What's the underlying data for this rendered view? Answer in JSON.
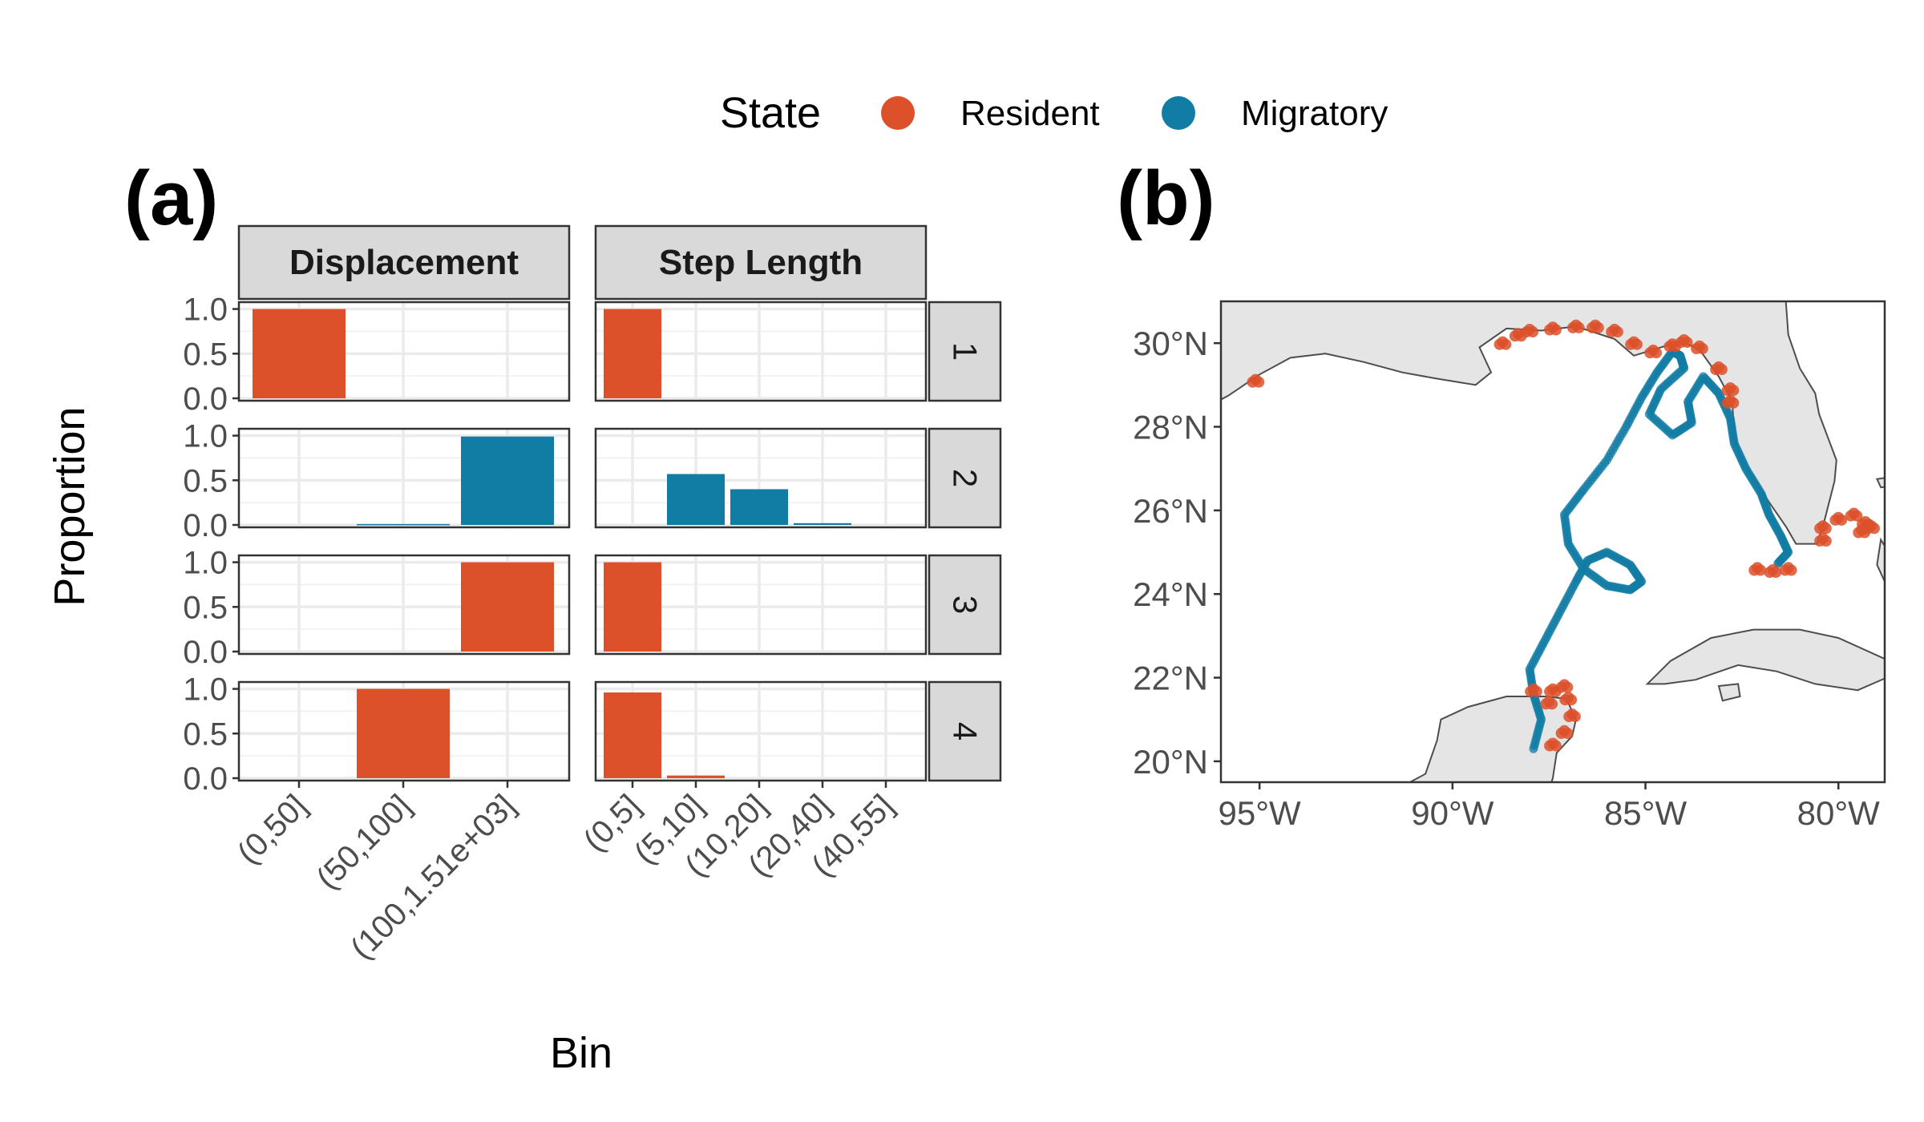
{
  "legend": {
    "title": "State",
    "entries": [
      {
        "label": "Resident",
        "color": "#DC502A"
      },
      {
        "label": "Migratory",
        "color": "#117CA4"
      }
    ]
  },
  "chart_data": [
    {
      "type": "bar",
      "panel_label": "(a)",
      "facet_columns": [
        "Displacement",
        "Step Length"
      ],
      "facet_rows": [
        "1",
        "2",
        "3",
        "4"
      ],
      "row_states": [
        "Resident",
        "Migratory",
        "Resident",
        "Resident"
      ],
      "xlabel": "Bin",
      "ylabel": "Proportion",
      "ylim": [
        0,
        1.05
      ],
      "yticks": [
        "0.0",
        "0.5",
        "1.0"
      ],
      "grid": true,
      "displacement_categories": [
        "(0,50]",
        "(50,100]",
        "(100,1.51e+03]"
      ],
      "step_length_categories": [
        "(0,5]",
        "(5,10]",
        "(10,20]",
        "(20,40]",
        "(40,55]"
      ],
      "displacement_values": [
        [
          1.0,
          0.0,
          0.0
        ],
        [
          0.0,
          0.01,
          0.99
        ],
        [
          0.0,
          0.0,
          1.0
        ],
        [
          0.0,
          1.0,
          0.0
        ]
      ],
      "step_length_values": [
        [
          1.0,
          0.0,
          0.0,
          0.0,
          0.0
        ],
        [
          0.0,
          0.57,
          0.4,
          0.02,
          0.0
        ],
        [
          1.0,
          0.0,
          0.0,
          0.0,
          0.0
        ],
        [
          0.96,
          0.03,
          0.0,
          0.0,
          0.0
        ]
      ]
    },
    {
      "type": "scatter",
      "panel_label": "(b)",
      "xlim": [
        -96.0,
        -78.8
      ],
      "ylim": [
        19.5,
        31.0
      ],
      "xticks": [
        -95,
        -90,
        -85,
        -80
      ],
      "xtick_labels": [
        "95°W",
        "90°W",
        "85°W",
        "80°W"
      ],
      "yticks": [
        20,
        22,
        24,
        26,
        28,
        30
      ],
      "ytick_labels": [
        "20°N",
        "22°N",
        "24°N",
        "26°N",
        "28°N",
        "30°N"
      ],
      "land_color": "#E5E5E5",
      "migratory_track": [
        [
          -87.9,
          20.3
        ],
        [
          -87.7,
          21.0
        ],
        [
          -87.9,
          21.6
        ],
        [
          -88.0,
          22.2
        ],
        [
          -87.6,
          22.9
        ],
        [
          -87.2,
          23.6
        ],
        [
          -86.8,
          24.3
        ],
        [
          -86.5,
          24.8
        ],
        [
          -86.0,
          25.0
        ],
        [
          -85.4,
          24.7
        ],
        [
          -85.1,
          24.3
        ],
        [
          -85.4,
          24.1
        ],
        [
          -86.0,
          24.2
        ],
        [
          -86.6,
          24.6
        ],
        [
          -87.0,
          25.2
        ],
        [
          -87.1,
          25.9
        ],
        [
          -86.6,
          26.5
        ],
        [
          -86.0,
          27.2
        ],
        [
          -85.5,
          28.0
        ],
        [
          -85.1,
          28.7
        ],
        [
          -84.7,
          29.3
        ],
        [
          -84.3,
          29.8
        ],
        [
          -84.1,
          29.7
        ],
        [
          -84.0,
          29.4
        ],
        [
          -84.6,
          28.9
        ],
        [
          -84.9,
          28.3
        ],
        [
          -84.3,
          27.8
        ],
        [
          -83.8,
          28.1
        ],
        [
          -83.9,
          28.6
        ],
        [
          -83.5,
          29.2
        ],
        [
          -83.1,
          28.8
        ],
        [
          -82.8,
          28.2
        ],
        [
          -82.7,
          27.6
        ],
        [
          -82.4,
          27.0
        ],
        [
          -82.0,
          26.4
        ],
        [
          -81.8,
          25.9
        ],
        [
          -81.5,
          25.4
        ],
        [
          -81.3,
          25.0
        ],
        [
          -81.6,
          24.7
        ]
      ],
      "resident_points": [
        [
          -95.1,
          29.1
        ],
        [
          -88.7,
          30.0
        ],
        [
          -88.3,
          30.2
        ],
        [
          -88.0,
          30.3
        ],
        [
          -87.4,
          30.35
        ],
        [
          -86.8,
          30.4
        ],
        [
          -86.3,
          30.4
        ],
        [
          -85.8,
          30.3
        ],
        [
          -85.3,
          30.0
        ],
        [
          -84.8,
          29.8
        ],
        [
          -84.3,
          29.95
        ],
        [
          -84.0,
          30.05
        ],
        [
          -83.6,
          29.9
        ],
        [
          -83.1,
          29.4
        ],
        [
          -82.8,
          28.9
        ],
        [
          -82.8,
          28.6
        ],
        [
          -82.1,
          24.6
        ],
        [
          -81.7,
          24.55
        ],
        [
          -81.3,
          24.6
        ],
        [
          -80.4,
          25.6
        ],
        [
          -80.4,
          25.3
        ],
        [
          -80.0,
          25.8
        ],
        [
          -79.6,
          25.9
        ],
        [
          -79.3,
          25.7
        ],
        [
          -79.4,
          25.5
        ],
        [
          -79.15,
          25.6
        ],
        [
          -87.4,
          21.7
        ],
        [
          -87.1,
          21.8
        ],
        [
          -87.0,
          21.5
        ],
        [
          -86.9,
          21.1
        ],
        [
          -87.1,
          20.7
        ],
        [
          -87.4,
          20.4
        ],
        [
          -87.9,
          21.7
        ],
        [
          -87.5,
          21.4
        ]
      ]
    }
  ]
}
